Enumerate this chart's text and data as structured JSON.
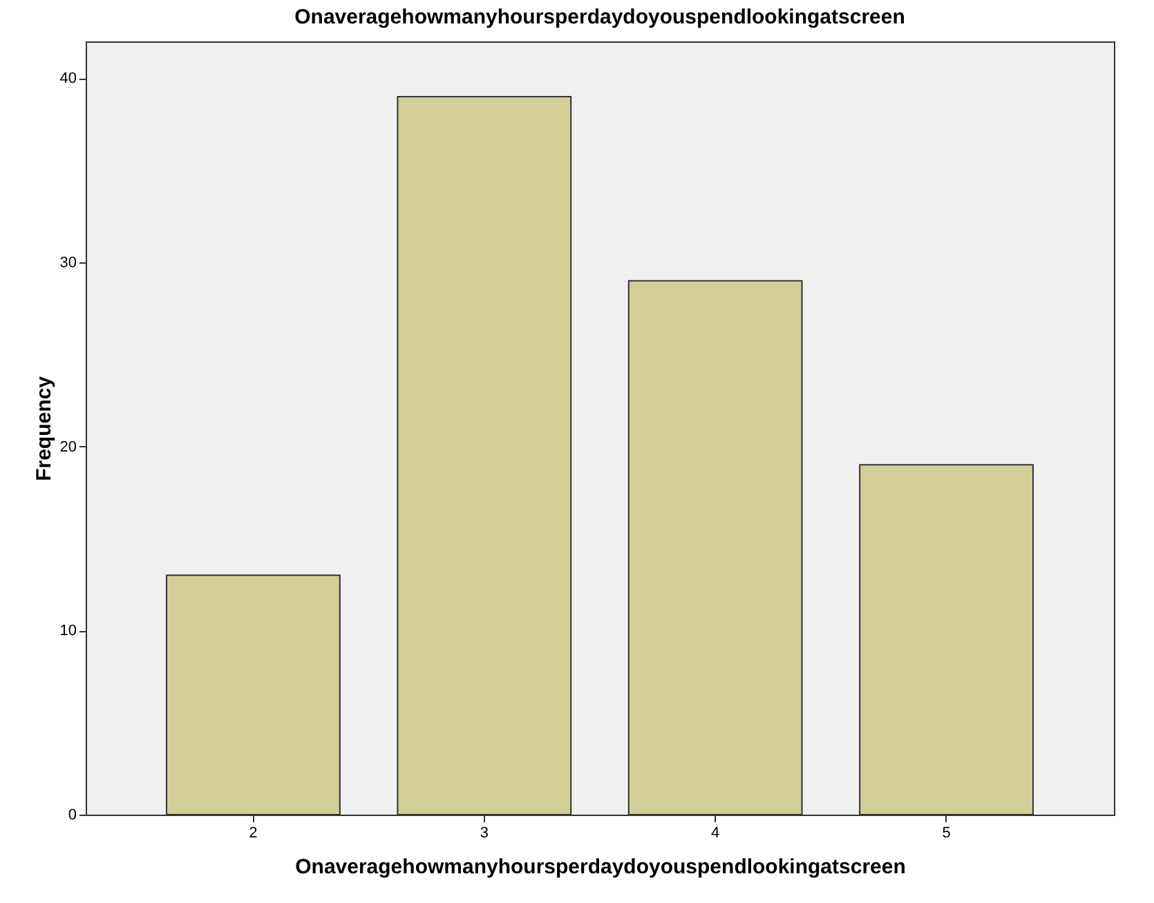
{
  "chart_data": {
    "type": "bar",
    "title": "Onaveragehowmanyhoursperdaydoyouspendlookingatscreen",
    "xlabel": "Onaveragehowmanyhoursperdaydoyouspendlookingatscreen",
    "ylabel": "Frequency",
    "categories": [
      "2",
      "3",
      "4",
      "5"
    ],
    "values": [
      13,
      39,
      29,
      19
    ],
    "color": "#d3ce97",
    "ylim": [
      0,
      42
    ],
    "yticks": [
      0,
      10,
      20,
      30,
      40
    ],
    "grid": false
  }
}
